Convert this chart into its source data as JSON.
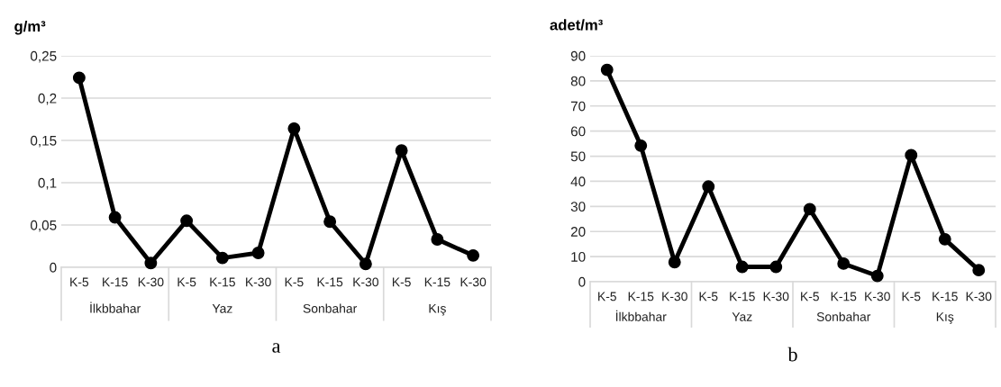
{
  "chart_data": [
    {
      "type": "line",
      "ylabel": "g/m³",
      "categories": [
        "K-5",
        "K-15",
        "K-30",
        "K-5",
        "K-15",
        "K-30",
        "K-5",
        "K-15",
        "K-30",
        "K-5",
        "K-15",
        "K-30"
      ],
      "series": [
        {
          "color": "#000000",
          "values": [
            0.224,
            0.059,
            0.005,
            0.055,
            0.011,
            0.017,
            0.164,
            0.054,
            0.004,
            0.138,
            0.033,
            0.014
          ]
        }
      ],
      "ylim": [
        0,
        0.25
      ],
      "yticks": [
        {
          "value": 0,
          "label": "0"
        },
        {
          "value": 0.05,
          "label": "0,05"
        },
        {
          "value": 0.1,
          "label": "0,1"
        },
        {
          "value": 0.15,
          "label": "0,15"
        },
        {
          "value": 0.2,
          "label": "0,2"
        },
        {
          "value": 0.25,
          "label": "0,25"
        }
      ],
      "grid": "y",
      "marker": "circle",
      "line_style": "solid",
      "annotations": [
        "İlkbbahar",
        "Yaz",
        "Sonbahar",
        "Kış",
        "a"
      ]
    },
    {
      "type": "line",
      "ylabel": "adet/m³",
      "categories": [
        "K-5",
        "K-15",
        "K-30",
        "K-5",
        "K-15",
        "K-30",
        "K-5",
        "K-15",
        "K-30",
        "K-5",
        "K-15",
        "K-30"
      ],
      "series": [
        {
          "color": "#000000",
          "values": [
            84.4,
            54.2,
            7.8,
            37.9,
            5.9,
            5.9,
            28.9,
            7.2,
            2.3,
            50.4,
            16.9,
            4.6
          ]
        }
      ],
      "ylim": [
        0,
        90
      ],
      "yticks": [
        0,
        10,
        20,
        30,
        40,
        50,
        60,
        70,
        80,
        90
      ],
      "grid": "y",
      "marker": "circle",
      "line_style": "solid",
      "annotations": [
        "İlkbbahar",
        "Yaz",
        "Sonbahar",
        "Kış",
        "b"
      ]
    }
  ]
}
